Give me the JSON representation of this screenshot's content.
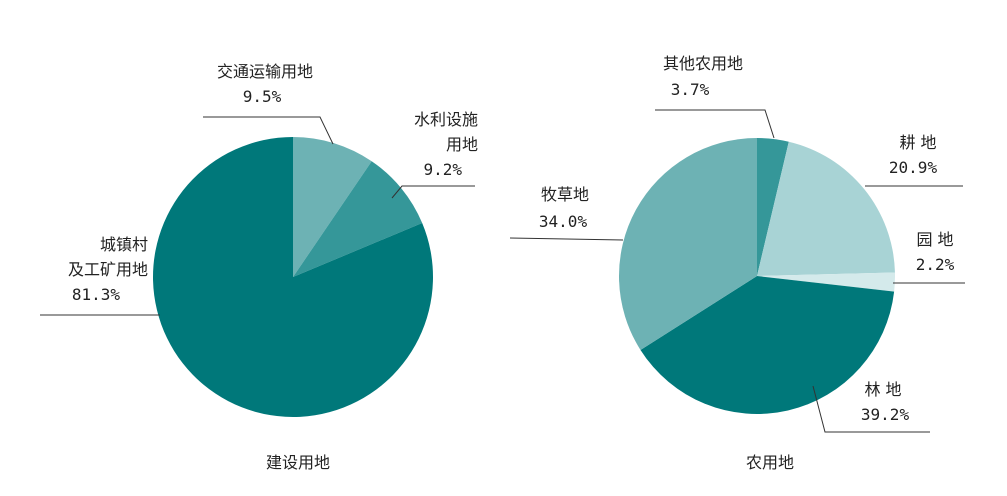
{
  "chart_data": [
    {
      "type": "pie",
      "title": "建设用地",
      "categories": [
        "交通运输用地",
        "水利设施\n用地",
        "城镇村\n及工矿用地"
      ],
      "values": [
        9.5,
        9.2,
        81.3
      ],
      "value_labels": [
        "9.5%",
        "9.2%",
        "81.3%"
      ],
      "colors": [
        "#6db2b4",
        "#359799",
        "#00787a"
      ]
    },
    {
      "type": "pie",
      "title": "农用地",
      "categories": [
        "其他农用地",
        "耕 地",
        "园 地",
        "林 地",
        "牧草地"
      ],
      "values": [
        3.7,
        20.9,
        2.2,
        39.2,
        34.0
      ],
      "value_labels": [
        "3.7%",
        "20.9%",
        "2.2%",
        "39.2%",
        "34.0%"
      ],
      "colors": [
        "#359799",
        "#a8d3d5",
        "#d4eaeb",
        "#00787a",
        "#6db2b4"
      ]
    }
  ]
}
